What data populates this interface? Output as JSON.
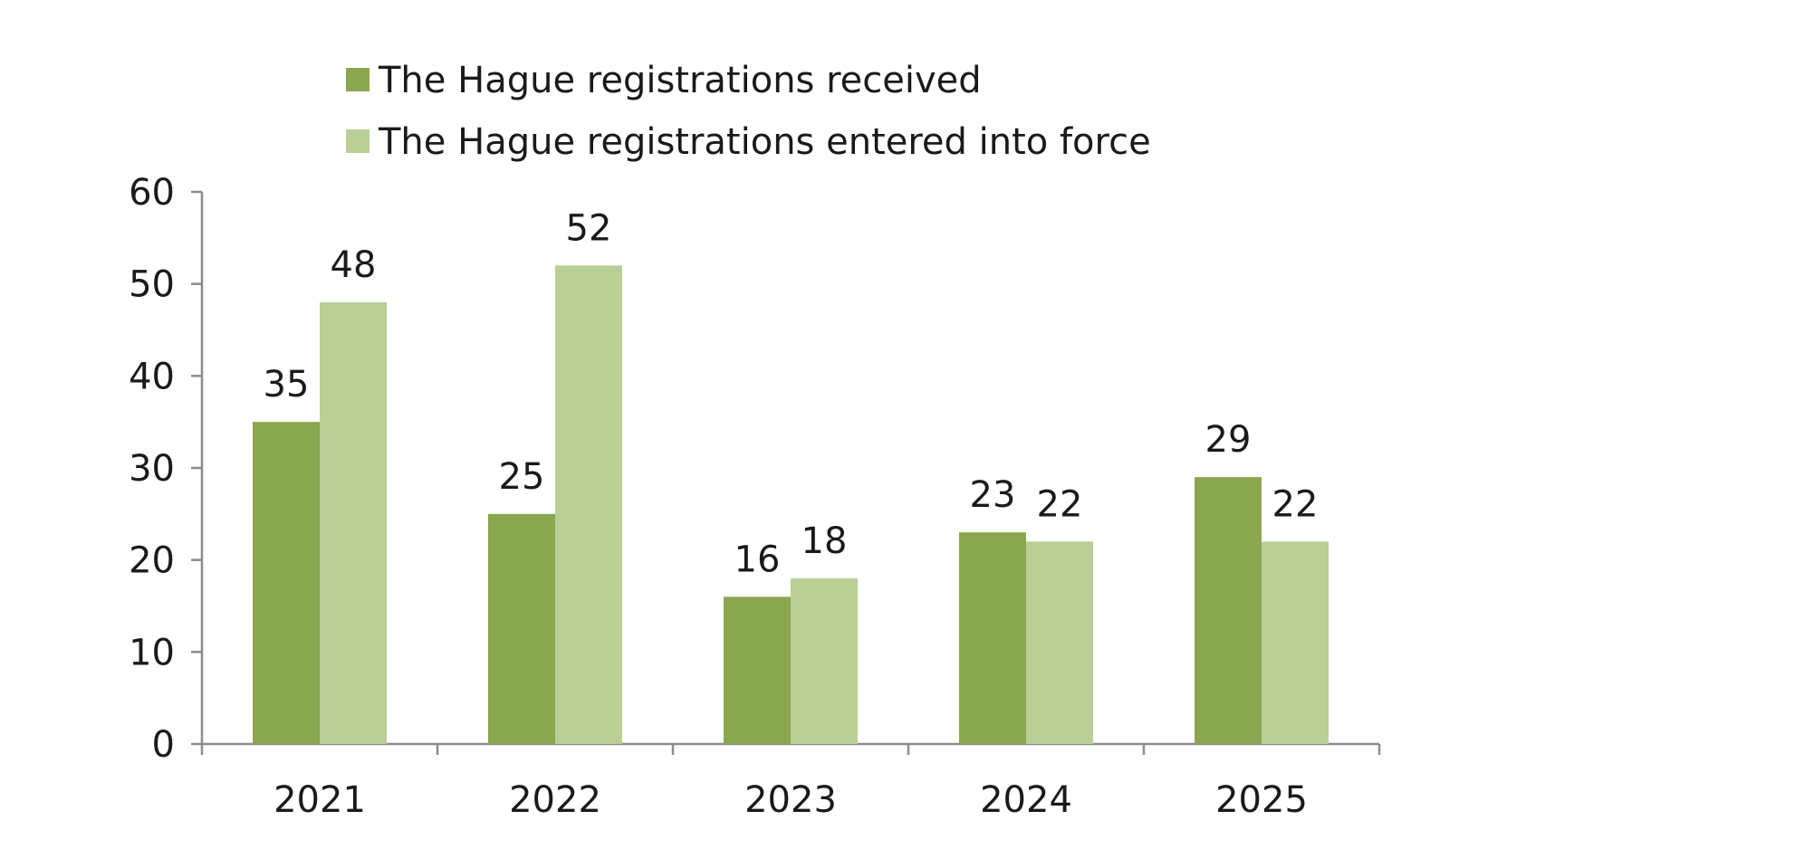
{
  "chart_data": {
    "type": "bar",
    "categories": [
      "2021",
      "2022",
      "2023",
      "2024",
      "2025"
    ],
    "series": [
      {
        "name": "The Hague registrations received",
        "values": [
          35,
          25,
          16,
          23,
          29
        ],
        "color": "#8aa64f"
      },
      {
        "name": "The Hague registrations entered into force",
        "values": [
          48,
          52,
          18,
          22,
          22
        ],
        "color": "#b9cf96"
      }
    ],
    "ylim": [
      0,
      60
    ],
    "yticks": [
      0,
      10,
      20,
      30,
      40,
      50,
      60
    ],
    "title": "",
    "xlabel": "",
    "ylabel": "",
    "grid": false,
    "legend_position": "top-left",
    "axis_color": "#8c8c8c"
  }
}
